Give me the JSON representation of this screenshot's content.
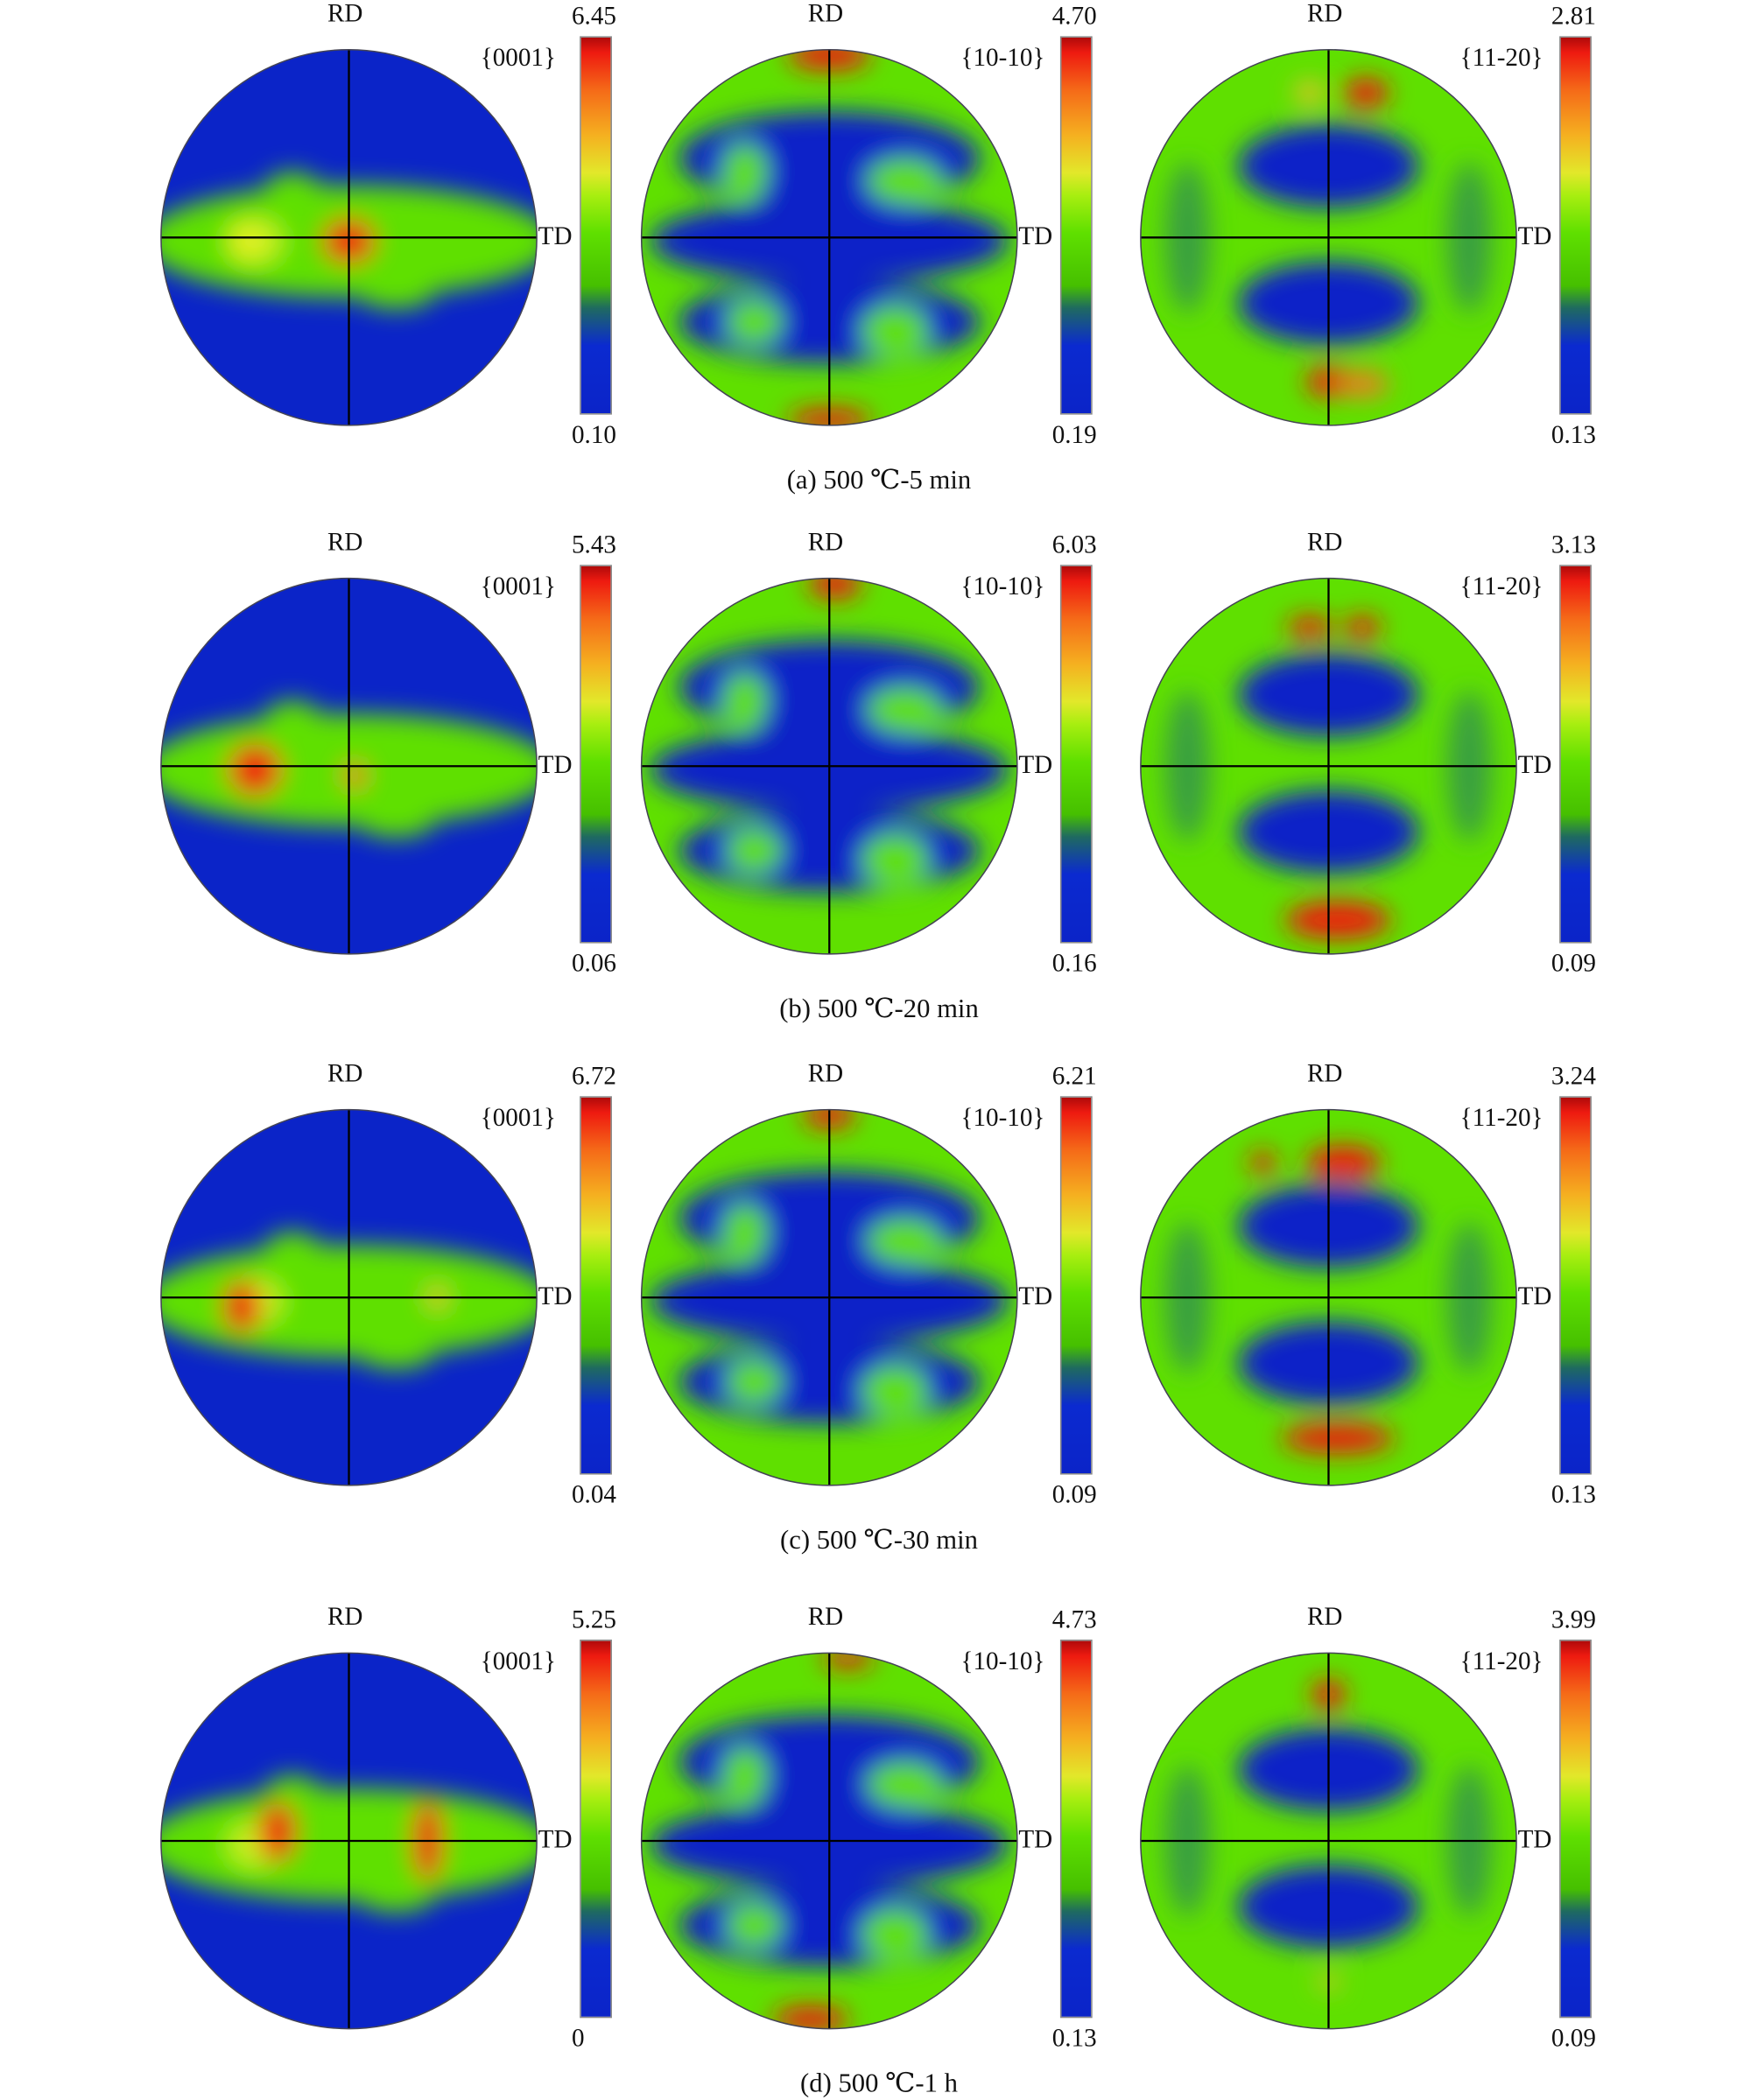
{
  "axis_labels": {
    "rd": "RD",
    "td": "TD"
  },
  "colors": {
    "low": "#0b24c8",
    "mid": "#5fe000",
    "high": "#ee1a10"
  },
  "rows": [
    {
      "caption": "(a) 500 ℃-5 min",
      "panels": [
        {
          "plane": "{0001}",
          "max": "6.45",
          "min": "0.10"
        },
        {
          "plane": "{10-10}",
          "max": "4.70",
          "min": "0.19"
        },
        {
          "plane": "{11-20}",
          "max": "2.81",
          "min": "0.13"
        }
      ]
    },
    {
      "caption": "(b) 500 ℃-20 min",
      "panels": [
        {
          "plane": "{0001}",
          "max": "5.43",
          "min": "0.06"
        },
        {
          "plane": "{10-10}",
          "max": "6.03",
          "min": "0.16"
        },
        {
          "plane": "{11-20}",
          "max": "3.13",
          "min": "0.09"
        }
      ]
    },
    {
      "caption": "(c) 500 ℃-30 min",
      "panels": [
        {
          "plane": "{0001}",
          "max": "6.72",
          "min": "0.04"
        },
        {
          "plane": "{10-10}",
          "max": "6.21",
          "min": "0.09"
        },
        {
          "plane": "{11-20}",
          "max": "3.24",
          "min": "0.13"
        }
      ]
    },
    {
      "caption": "(d) 500 ℃-1 h",
      "panels": [
        {
          "plane": "{0001}",
          "max": "5.25",
          "min": "0"
        },
        {
          "plane": "{10-10}",
          "max": "4.73",
          "min": "0.13"
        },
        {
          "plane": "{11-20}",
          "max": "3.99",
          "min": "0.09"
        }
      ]
    }
  ]
}
